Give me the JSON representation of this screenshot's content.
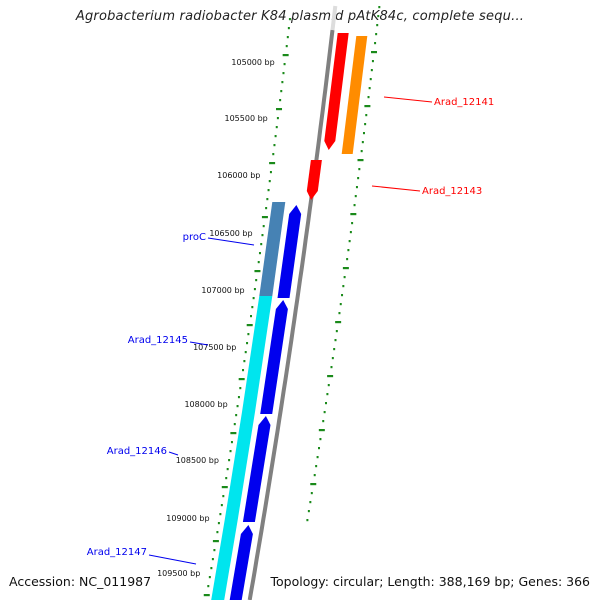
{
  "title": "Agrobacterium radiobacter K84 plasmid pAtK84c, complete sequ...",
  "footer": {
    "accession": "Accession: NC_011987",
    "summary": "Topology: circular; Length: 388,169 bp; Genes: 366"
  },
  "scale": {
    "ticks": [
      "105000 bp",
      "105500 bp",
      "106000 bp",
      "106500 bp",
      "107000 bp",
      "107500 bp",
      "108000 bp",
      "108500 bp",
      "109000 bp",
      "109500 bp"
    ]
  },
  "genes": [
    {
      "name": "Arad_12141",
      "strand": "forward",
      "color": "#ff0000"
    },
    {
      "name": "Arad_12143",
      "strand": "forward",
      "color": "#ff0000"
    },
    {
      "name": "proC",
      "strand": "reverse",
      "color": "#0000ee"
    },
    {
      "name": "Arad_12145",
      "strand": "reverse",
      "color": "#0000ee"
    },
    {
      "name": "Arad_12146",
      "strand": "reverse",
      "color": "#0000ee"
    },
    {
      "name": "Arad_12147",
      "strand": "reverse",
      "color": "#0000ee"
    }
  ],
  "colors": {
    "backbone": "#808080",
    "gc_skew": "#1a8a1a",
    "cds_forward": "#ff0000",
    "cds_reverse": "#0000ee",
    "gene_forward": "#ff8c00",
    "gene_reverse": "#00e5ee",
    "operon_reverse": "#4682b4"
  }
}
